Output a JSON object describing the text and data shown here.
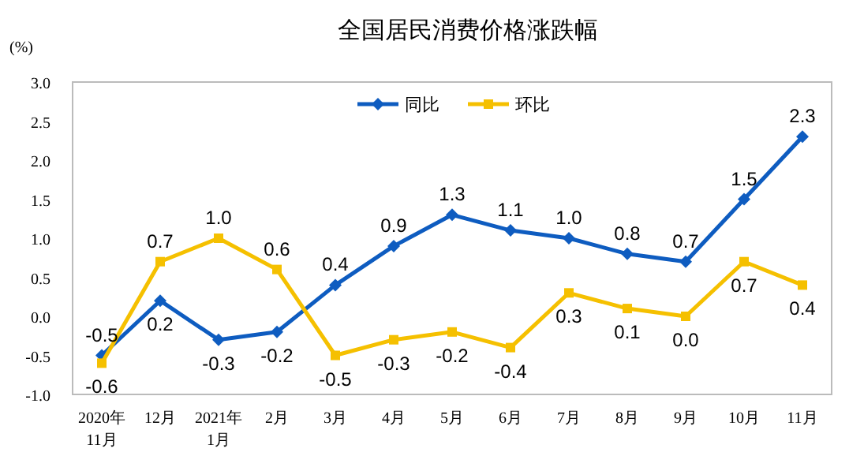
{
  "chart_data": {
    "type": "line",
    "title": "全国居民消费价格涨跌幅",
    "ylabel": "(%)",
    "categories": [
      "2020年\n11月",
      "12月",
      "2021年\n1月",
      "2月",
      "3月",
      "4月",
      "5月",
      "6月",
      "7月",
      "8月",
      "9月",
      "10月",
      "11月"
    ],
    "series": [
      {
        "name": "同比",
        "color": "#0e5cc0",
        "marker": "diamond",
        "values": [
          -0.5,
          0.2,
          -0.3,
          -0.2,
          0.4,
          0.9,
          1.3,
          1.1,
          1.0,
          0.8,
          0.7,
          1.5,
          2.3
        ],
        "value_labels": [
          "-0.5",
          "0.2",
          "-0.3",
          "-0.2",
          "0.4",
          "0.9",
          "1.3",
          "1.1",
          "1.0",
          "0.8",
          "0.7",
          "1.5",
          "2.3"
        ]
      },
      {
        "name": "环比",
        "color": "#f5c000",
        "marker": "square",
        "values": [
          -0.6,
          0.7,
          1.0,
          0.6,
          -0.5,
          -0.3,
          -0.2,
          -0.4,
          0.3,
          0.1,
          0.0,
          0.7,
          0.4
        ],
        "value_labels": [
          "-0.6",
          "0.7",
          "1.0",
          "0.6",
          "-0.5",
          "-0.3",
          "-0.2",
          "-0.4",
          "0.3",
          "0.1",
          "0.0",
          "0.7",
          "0.4"
        ]
      }
    ],
    "ylim": [
      -1.0,
      3.0
    ],
    "yticks": [
      {
        "value": -1,
        "label": "-1.0"
      },
      {
        "value": -0.5,
        "label": "-0.5"
      },
      {
        "value": 0,
        "label": "0.0"
      },
      {
        "value": 0.5,
        "label": "0.5"
      },
      {
        "value": 1,
        "label": "1.0"
      },
      {
        "value": 1.5,
        "label": "1.5"
      },
      {
        "value": 2,
        "label": "2.0"
      },
      {
        "value": 2.5,
        "label": "2.5"
      },
      {
        "value": 3,
        "label": "3.0"
      }
    ],
    "legend": "top",
    "grid": false
  }
}
